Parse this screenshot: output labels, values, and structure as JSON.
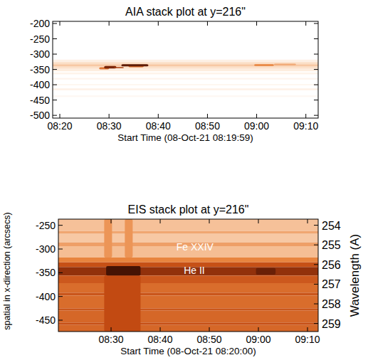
{
  "chart_data": [
    {
      "type": "heatmap",
      "title": "AIA stack plot at y=216\"",
      "x_label": "Start Time (08-Oct-21 08:19:59)",
      "xlim": [
        18.55,
        72.5
      ],
      "xticks": [
        {
          "value": 20,
          "label": "08:20"
        },
        {
          "value": 30,
          "label": "08:30"
        },
        {
          "value": 40,
          "label": "08:40"
        },
        {
          "value": 50,
          "label": "08:50"
        },
        {
          "value": 60,
          "label": "09:00"
        },
        {
          "value": 70,
          "label": "09:10"
        }
      ],
      "ylim": [
        -193,
        -509
      ],
      "yticks": [
        -200,
        -250,
        -300,
        -350,
        -400,
        -450,
        -500
      ],
      "zlim": [
        0,
        1
      ],
      "bands": [
        {
          "y": [
            -193,
            -509
          ],
          "value": 0
        },
        {
          "y": [
            -318,
            -326
          ],
          "value": 0.1
        },
        {
          "y": [
            -326,
            -333
          ],
          "value": 0.22
        },
        {
          "y": [
            -333,
            -341
          ],
          "value": 0.3
        },
        {
          "y": [
            -341,
            -348
          ],
          "value": 0.2
        },
        {
          "y": [
            -348,
            -356
          ],
          "value": 0.12
        },
        {
          "y": [
            -360,
            -366
          ],
          "value": 0.08
        },
        {
          "y": [
            -378,
            -383
          ],
          "value": 0.07
        },
        {
          "y": [
            -398,
            -402
          ],
          "value": 0.06
        },
        {
          "y": [
            -412,
            -418
          ],
          "value": 0.09
        },
        {
          "y": [
            -435,
            -440
          ],
          "value": 0.05
        }
      ],
      "features": [
        {
          "x": [
            28,
            30
          ],
          "y": [
            -343,
            -350
          ],
          "value": 0.55
        },
        {
          "x": [
            29,
            31.5
          ],
          "y": [
            -339,
            -347
          ],
          "value": 0.85
        },
        {
          "x": [
            31,
            33
          ],
          "y": [
            -342,
            -346
          ],
          "value": 0.75
        },
        {
          "x": [
            34,
            37
          ],
          "y": [
            -337,
            -343
          ],
          "value": 0.6
        },
        {
          "x": [
            32.5,
            38
          ],
          "y": [
            -333,
            -340
          ],
          "value": 0.9
        },
        {
          "x": [
            59.5,
            63.5
          ],
          "y": [
            -333,
            -339
          ],
          "value": 0.5
        },
        {
          "x": [
            63.5,
            68
          ],
          "y": [
            -331,
            -336
          ],
          "value": 0.4
        }
      ]
    },
    {
      "type": "heatmap",
      "title": "EIS stack plot at y=216\"",
      "x_label": "Start Time (08-Oct-21 08:20:00)",
      "y_label": "spatial in x-direction (arcsecs)",
      "y2_label": "Wavelength (A)",
      "xlim": [
        19.27,
        72.17
      ],
      "xticks": [
        {
          "value": 30,
          "label": "08:30"
        },
        {
          "value": 40,
          "label": "08:40"
        },
        {
          "value": 50,
          "label": "08:50"
        },
        {
          "value": 60,
          "label": "09:00"
        },
        {
          "value": 70,
          "label": "09:10"
        }
      ],
      "ylim": [
        -237,
        -474
      ],
      "yticks": [
        -250,
        -300,
        -350,
        -400,
        -450
      ],
      "y2lim": [
        253.69,
        259.41
      ],
      "y2ticks": [
        254,
        255,
        256,
        257,
        258,
        259
      ],
      "zlim": [
        0,
        1
      ],
      "bands": [
        {
          "y": [
            -237,
            -262
          ],
          "value": 0.32
        },
        {
          "y": [
            -262,
            -268
          ],
          "value": 0.4
        },
        {
          "y": [
            -268,
            -286
          ],
          "value": 0.3
        },
        {
          "y": [
            -286,
            -294
          ],
          "value": 0.42
        },
        {
          "y": [
            -294,
            -318
          ],
          "value": 0.33
        },
        {
          "y": [
            -318,
            -328
          ],
          "value": 0.5
        },
        {
          "y": [
            -328,
            -338
          ],
          "value": 0.68
        },
        {
          "y": [
            -338,
            -356
          ],
          "value": 0.8
        },
        {
          "y": [
            -356,
            -372
          ],
          "value": 0.65
        },
        {
          "y": [
            -372,
            -392
          ],
          "value": 0.58
        },
        {
          "y": [
            -392,
            -398
          ],
          "value": 0.66
        },
        {
          "y": [
            -398,
            -425
          ],
          "value": 0.58
        },
        {
          "y": [
            -425,
            -430
          ],
          "value": 0.66
        },
        {
          "y": [
            -430,
            -455
          ],
          "value": 0.6
        },
        {
          "y": [
            -455,
            -460
          ],
          "value": 0.68
        },
        {
          "y": [
            -460,
            -474
          ],
          "value": 0.6
        }
      ],
      "features": [
        {
          "x": [
            28.6,
            30.2
          ],
          "y": [
            -237,
            -318
          ],
          "value": 0.45
        },
        {
          "x": [
            32.8,
            34.4
          ],
          "y": [
            -237,
            -318
          ],
          "value": 0.45
        },
        {
          "x": [
            28.6,
            36
          ],
          "y": [
            -356,
            -474
          ],
          "value": 0.7
        },
        {
          "x": [
            29,
            36
          ],
          "y": [
            -336,
            -356
          ],
          "value": 0.95
        },
        {
          "x": [
            59.5,
            63.5
          ],
          "y": [
            -340,
            -354
          ],
          "value": 0.88
        }
      ],
      "annotations": [
        {
          "text": "Fe XXIV",
          "x": 43.3,
          "y2": 255.1
        },
        {
          "text": "He II",
          "x": 44.8,
          "y2": 256.3
        }
      ]
    }
  ]
}
